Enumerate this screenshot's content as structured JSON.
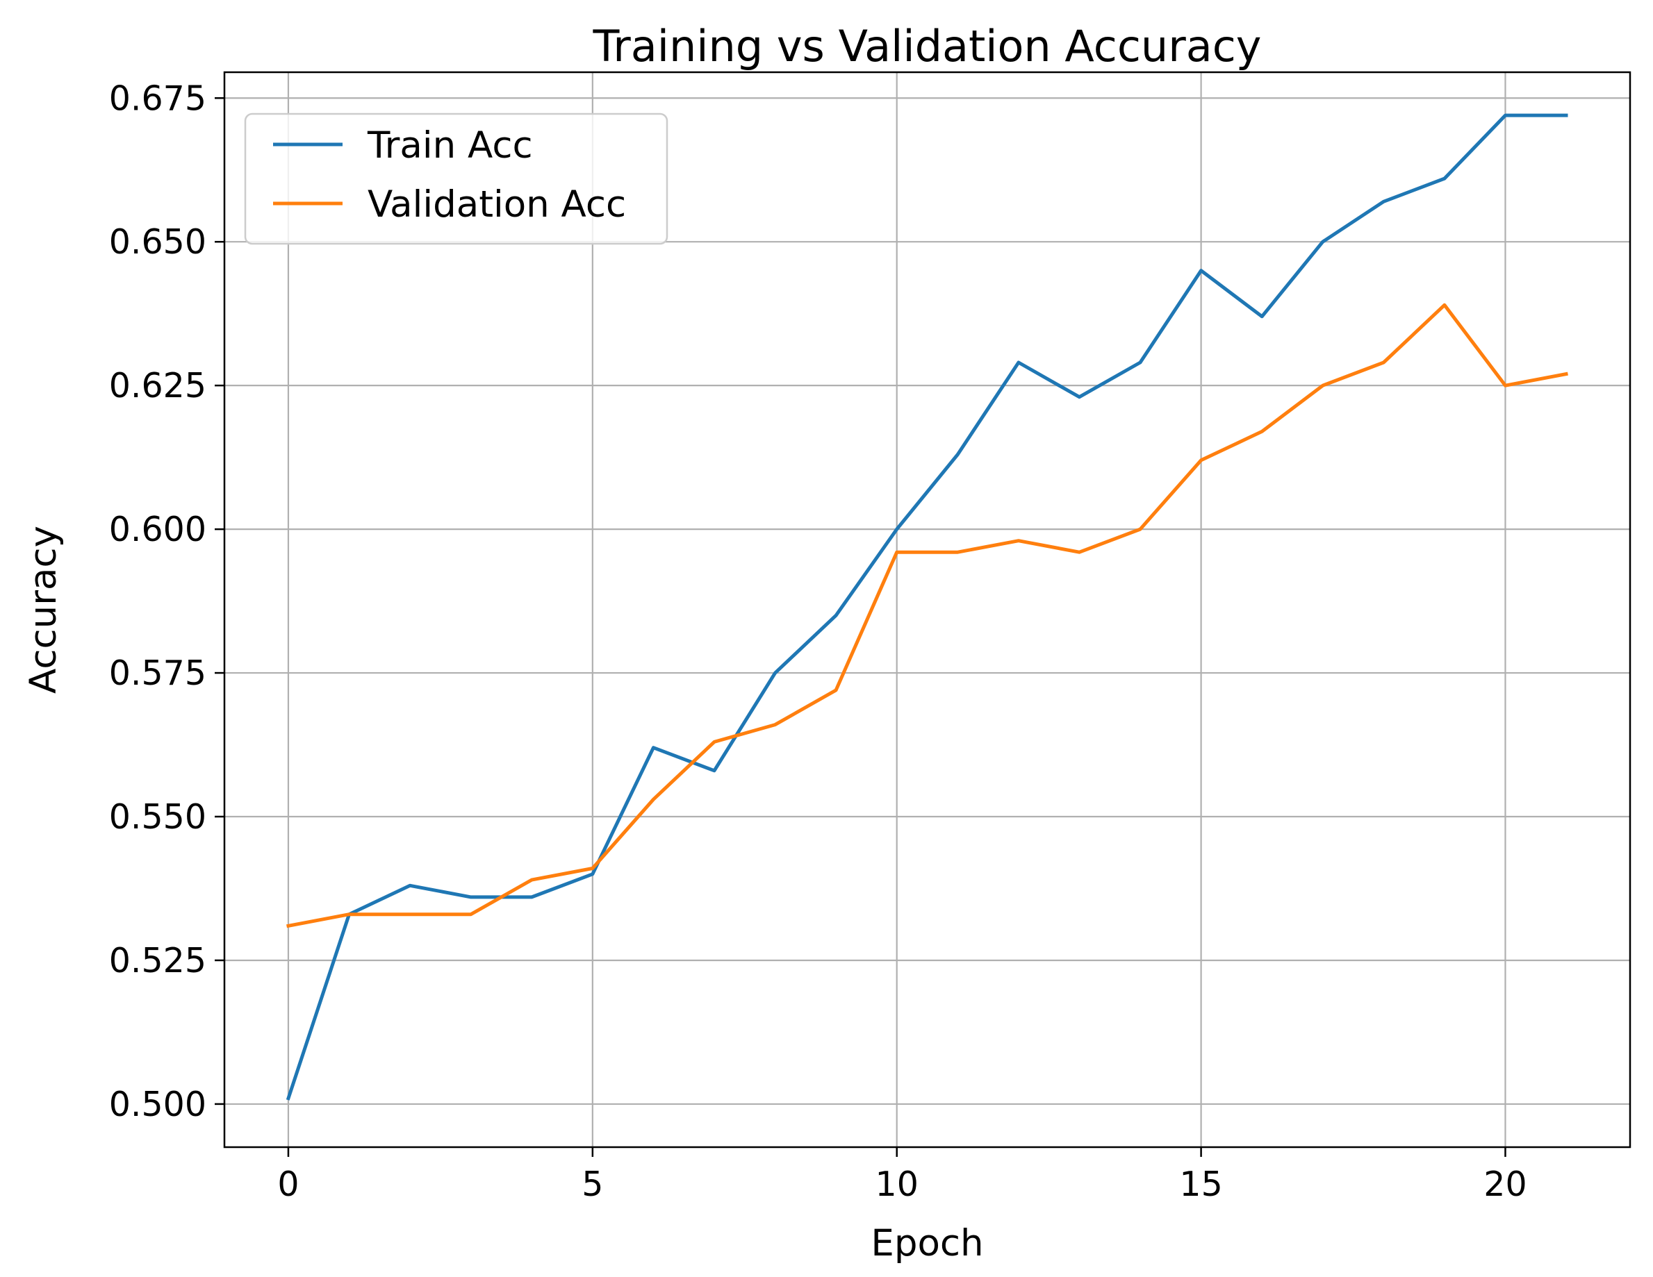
{
  "chart_data": {
    "type": "line",
    "title": "Training vs Validation Accuracy",
    "xlabel": "Epoch",
    "ylabel": "Accuracy",
    "xlim": [
      -1.05,
      22.05
    ],
    "ylim": [
      0.4925,
      0.6795
    ],
    "xticks": [
      0,
      5,
      10,
      15,
      20
    ],
    "yticks": [
      0.5,
      0.525,
      0.55,
      0.575,
      0.6,
      0.625,
      0.65,
      0.675
    ],
    "xtick_labels": [
      "0",
      "5",
      "10",
      "15",
      "20"
    ],
    "ytick_labels": [
      "0.500",
      "0.525",
      "0.550",
      "0.575",
      "0.600",
      "0.625",
      "0.650",
      "0.675"
    ],
    "grid": true,
    "legend_position": "top-left",
    "x": [
      0,
      1,
      2,
      3,
      4,
      5,
      6,
      7,
      8,
      9,
      10,
      11,
      12,
      13,
      14,
      15,
      16,
      17,
      18,
      19,
      20,
      21
    ],
    "series": [
      {
        "name": "Train Acc",
        "color": "#1f77b4",
        "values": [
          0.501,
          0.533,
          0.538,
          0.536,
          0.536,
          0.54,
          0.562,
          0.558,
          0.575,
          0.585,
          0.6,
          0.613,
          0.629,
          0.623,
          0.629,
          0.645,
          0.637,
          0.65,
          0.657,
          0.661,
          0.672,
          0.672
        ]
      },
      {
        "name": "Validation Acc",
        "color": "#ff7f0e",
        "values": [
          0.531,
          0.533,
          0.533,
          0.533,
          0.539,
          0.541,
          0.553,
          0.563,
          0.566,
          0.572,
          0.596,
          0.596,
          0.598,
          0.596,
          0.6,
          0.612,
          0.617,
          0.625,
          0.629,
          0.639,
          0.625,
          0.627
        ]
      }
    ]
  }
}
